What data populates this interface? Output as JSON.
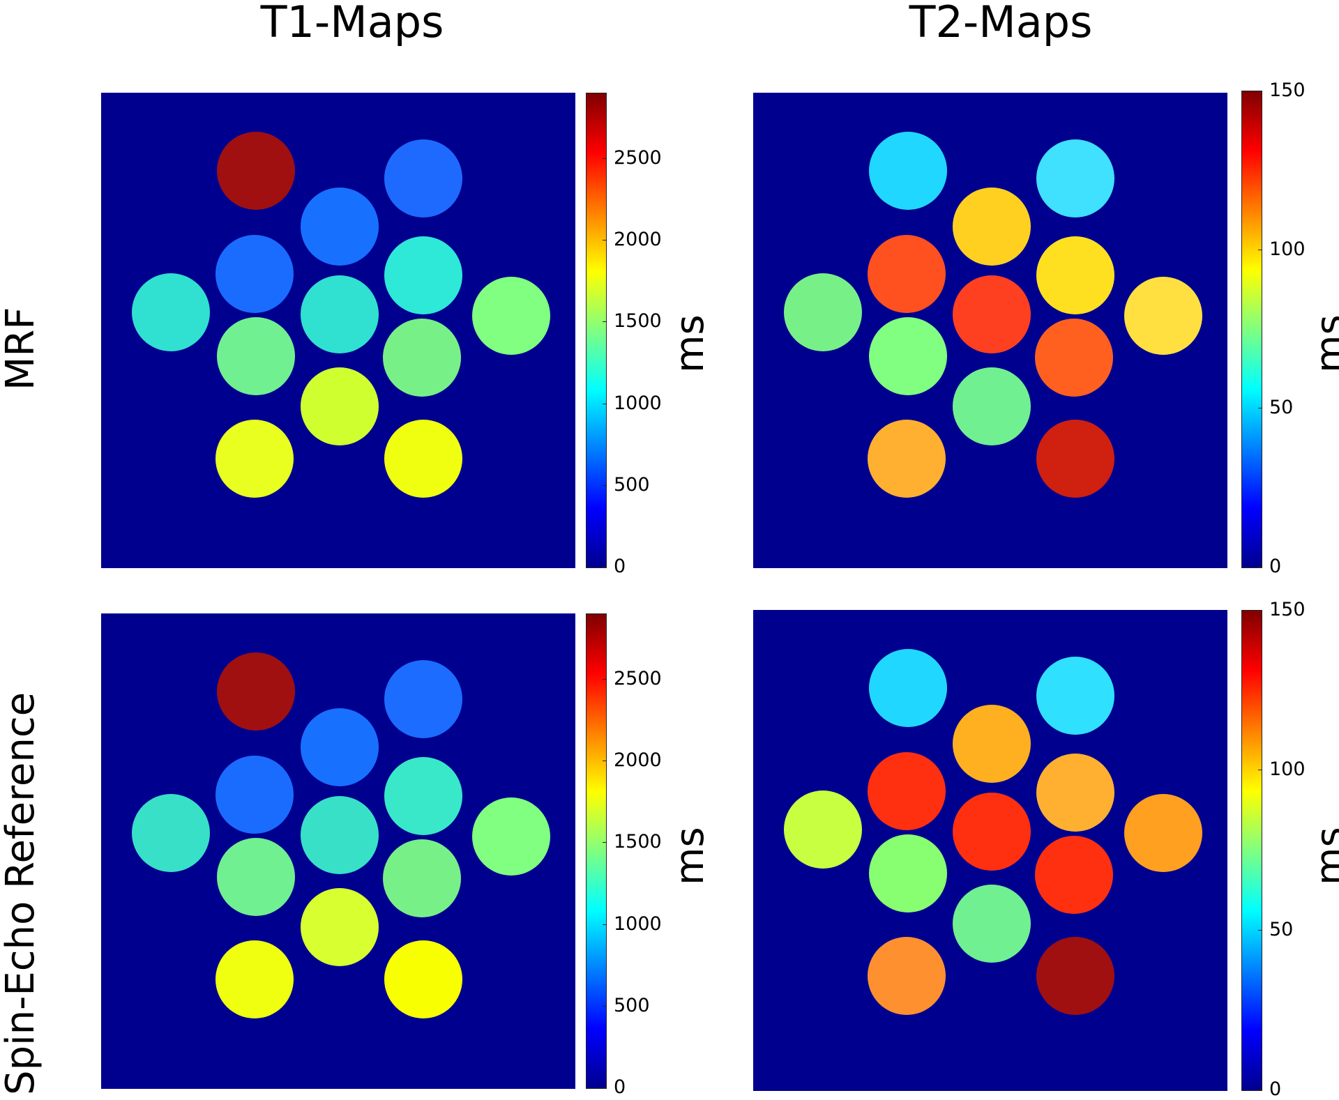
{
  "columns": {
    "t1_title": "T1-Maps",
    "t2_title": "T2-Maps"
  },
  "rows": {
    "mrf_title": "MRF",
    "reference_title": "Spin-Echo Reference"
  },
  "colorbars": {
    "t1": {
      "unit": "ms",
      "min": 0,
      "max": 2900,
      "ticks": [
        "0",
        "500",
        "1000",
        "1500",
        "2000",
        "2500"
      ],
      "tick_values": [
        0,
        500,
        1000,
        1500,
        2000,
        2500
      ]
    },
    "t2": {
      "unit": "ms",
      "min": 0,
      "max": 150,
      "ticks": [
        "0",
        "50",
        "100",
        "150"
      ],
      "tick_values": [
        0,
        50,
        100,
        150
      ]
    }
  },
  "colormap": "jet",
  "background_color": "#00008f",
  "phantom_colors": {
    "t1_mrf": [
      "#a01010",
      "#1e6aff",
      "#1870ff",
      "#1a6cff",
      "#2ee8d8",
      "#30e0d0",
      "#30e0d0",
      "#80ff80",
      "#70f090",
      "#78f088",
      "#d0ff30",
      "#e8ff20",
      "#f0ff10"
    ],
    "t1_ref": [
      "#a01010",
      "#1c6cff",
      "#1870ff",
      "#1a6cff",
      "#38e8c8",
      "#38e0c8",
      "#38e0c8",
      "#80ff80",
      "#70f090",
      "#78f088",
      "#d8ff30",
      "#f0ff10",
      "#f8ff00"
    ],
    "t2_mrf": [
      "#20d8ff",
      "#40e0ff",
      "#ffd020",
      "#ff5020",
      "#ffe020",
      "#78f088",
      "#ff4020",
      "#ffe040",
      "#80ff80",
      "#ff6020",
      "#70f090",
      "#ffb030",
      "#d02010"
    ],
    "t2_ref": [
      "#20d8ff",
      "#30e0ff",
      "#ffb020",
      "#ff3010",
      "#ffb030",
      "#c8ff40",
      "#ff3010",
      "#ffa020",
      "#88ff70",
      "#ff3010",
      "#70f090",
      "#ff9030",
      "#a01010"
    ]
  }
}
